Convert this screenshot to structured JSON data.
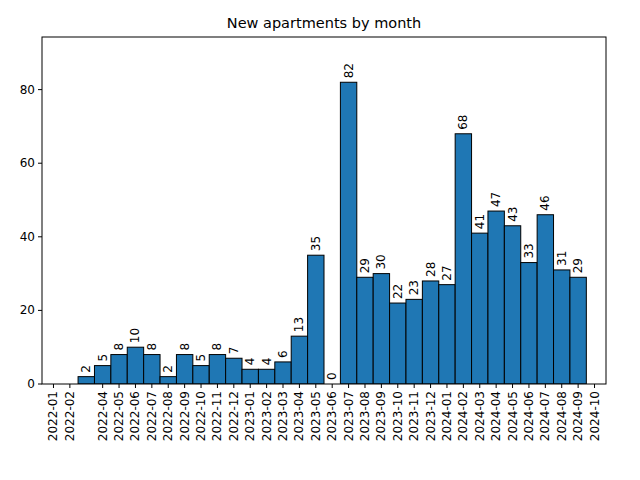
{
  "chart_data": {
    "type": "bar",
    "title": "New apartments by month",
    "categories": [
      "2022-01",
      "2022-02",
      null,
      "2022-04",
      "2022-05",
      "2022-06",
      "2022-07",
      "2022-08",
      "2022-09",
      "2022-10",
      "2022-11",
      "2022-12",
      "2023-01",
      "2023-02",
      "2023-03",
      "2023-04",
      "2023-05",
      "2023-06",
      "2023-07",
      "2023-08",
      "2023-09",
      "2023-10",
      "2023-11",
      "2023-12",
      "2024-01",
      "2024-02",
      "2024-03",
      "2024-04",
      "2024-05",
      "2024-06",
      "2024-07",
      "2024-08",
      "2024-09",
      "2024-10"
    ],
    "values": [
      null,
      null,
      2,
      5,
      8,
      10,
      8,
      2,
      8,
      5,
      8,
      7,
      4,
      4,
      6,
      13,
      35,
      0,
      82,
      29,
      30,
      22,
      23,
      28,
      27,
      68,
      41,
      47,
      43,
      33,
      46,
      31,
      29,
      null
    ],
    "color": "#1f77b4",
    "ylim": [
      0,
      94.3
    ],
    "yticks": [
      0,
      20,
      40,
      60,
      80
    ],
    "grid": false,
    "data_labels": true
  }
}
